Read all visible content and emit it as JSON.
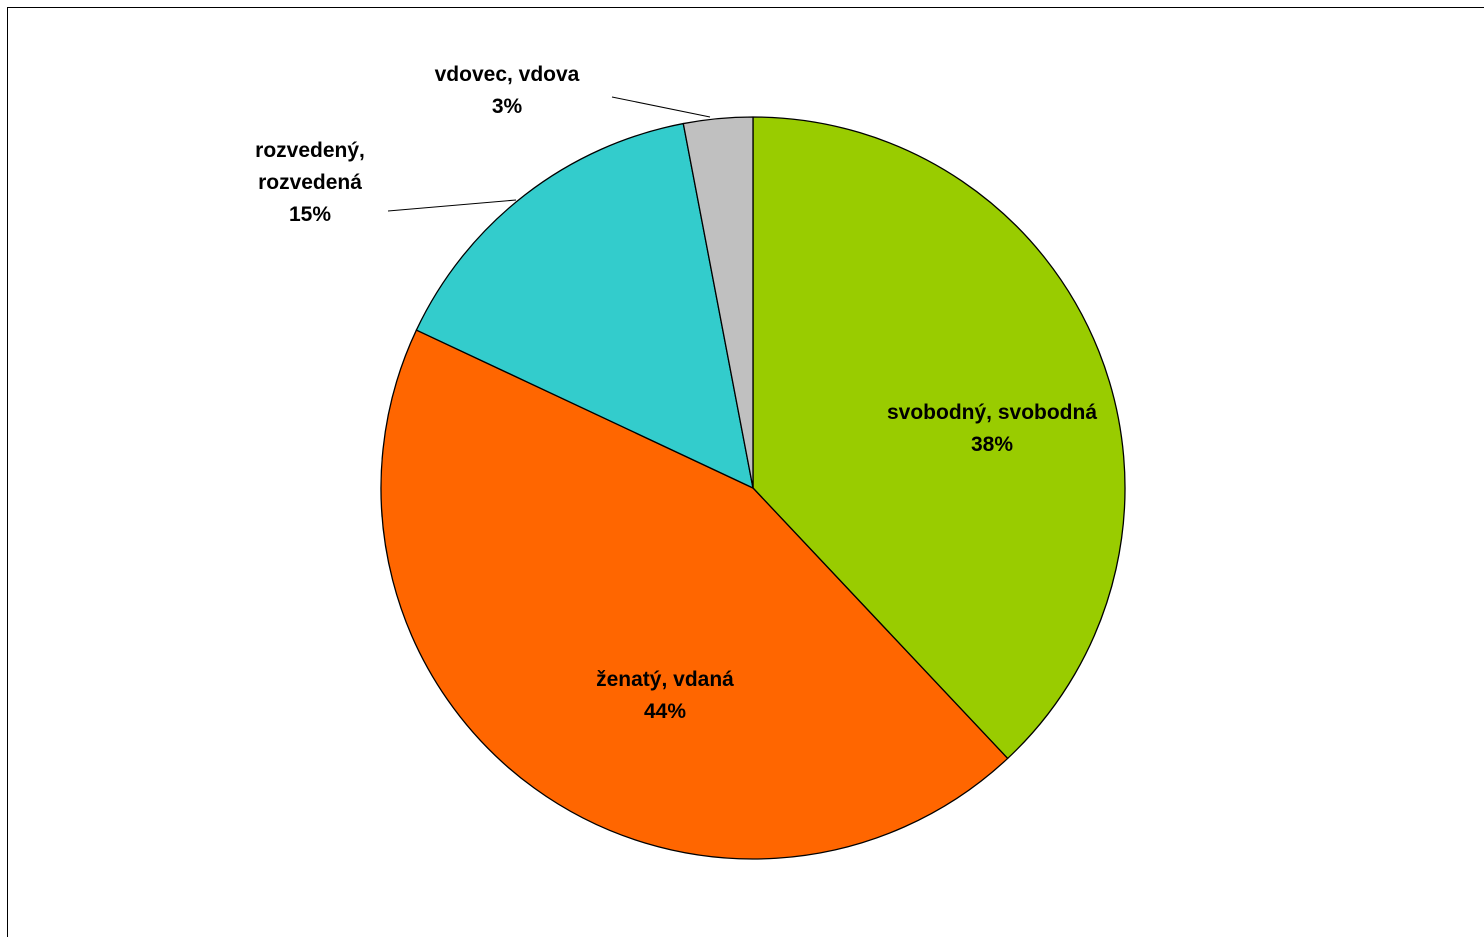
{
  "chart_data": {
    "type": "pie",
    "title": "",
    "slices": [
      {
        "label_lines": [
          "svobodný, svobodná"
        ],
        "percent_label": "38%",
        "value": 38,
        "color": "#99CC00"
      },
      {
        "label_lines": [
          "ženatý, vdaná"
        ],
        "percent_label": "44%",
        "value": 44,
        "color": "#FF6600"
      },
      {
        "label_lines": [
          "rozvedený,",
          "rozvedená"
        ],
        "percent_label": "15%",
        "value": 15,
        "color": "#33CCCC"
      },
      {
        "label_lines": [
          "vdovec, vdova"
        ],
        "percent_label": "3%",
        "value": 3,
        "color": "#C0C0C0"
      }
    ],
    "start_angle": "12 o'clock",
    "direction": "clockwise",
    "slice_border_color": "#000000",
    "legend": "none"
  }
}
